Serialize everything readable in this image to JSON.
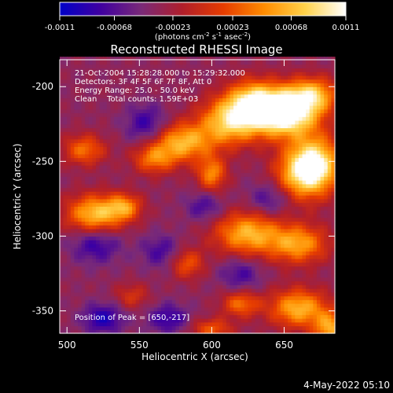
{
  "colorbar": {
    "ticks": [
      "-0.0011",
      "-0.00068",
      "-0.00023",
      "0.00023",
      "0.00068",
      "0.0011"
    ],
    "tick_values": [
      -0.0011,
      -0.00068,
      -0.00023,
      0.00023,
      0.00068,
      0.0011
    ],
    "range": [
      -0.0011,
      0.0011
    ],
    "units_prefix": "(photons cm",
    "units_exp1": "-2",
    "units_mid": " s",
    "units_exp2": "-1",
    "units_mid2": " asec",
    "units_exp3": "-2",
    "units_suffix": ")",
    "stops": [
      "#0000c8",
      "#4000a0",
      "#7a2a78",
      "#b01e2a",
      "#e63c00",
      "#ff8c00",
      "#ffd24a",
      "#ffffff"
    ]
  },
  "chart_data": {
    "type": "heatmap",
    "title": "Reconstructed RHESSI Image",
    "xlabel": "Heliocentric X (arcsec)",
    "ylabel": "Heliocentric Y (arcsec)",
    "xlim": [
      495,
      685
    ],
    "ylim": [
      -365,
      -182
    ],
    "xticks": [
      500,
      550,
      600,
      650
    ],
    "yticks": [
      -200,
      -250,
      -300,
      -350
    ],
    "xtick_labels": [
      "500",
      "550",
      "600",
      "650"
    ],
    "ytick_labels": [
      "-200",
      "-250",
      "-300",
      "-350"
    ],
    "background_level": -0.00035,
    "sources": [
      {
        "x": 650,
        "y": -217,
        "amp": 0.0018,
        "sx": 16,
        "sy": 11
      },
      {
        "x": 670,
        "y": -205,
        "amp": 0.0009,
        "sx": 12,
        "sy": 8
      },
      {
        "x": 628,
        "y": -210,
        "amp": 0.001,
        "sx": 12,
        "sy": 10
      },
      {
        "x": 612,
        "y": -223,
        "amp": 0.0011,
        "sx": 14,
        "sy": 11
      },
      {
        "x": 580,
        "y": -237,
        "amp": 0.001,
        "sx": 14,
        "sy": 9
      },
      {
        "x": 560,
        "y": -248,
        "amp": 0.0007,
        "sx": 10,
        "sy": 7
      },
      {
        "x": 512,
        "y": -242,
        "amp": 0.0007,
        "sx": 10,
        "sy": 7
      },
      {
        "x": 600,
        "y": -258,
        "amp": 0.0008,
        "sx": 7,
        "sy": 8
      },
      {
        "x": 660,
        "y": -258,
        "amp": 0.0008,
        "sx": 12,
        "sy": 12
      },
      {
        "x": 672,
        "y": -252,
        "amp": 0.0013,
        "sx": 12,
        "sy": 13
      },
      {
        "x": 520,
        "y": -285,
        "amp": 0.0011,
        "sx": 14,
        "sy": 9
      },
      {
        "x": 540,
        "y": -280,
        "amp": 0.0007,
        "sx": 8,
        "sy": 6
      },
      {
        "x": 625,
        "y": -298,
        "amp": 0.001,
        "sx": 16,
        "sy": 10
      },
      {
        "x": 660,
        "y": -305,
        "amp": 0.0009,
        "sx": 14,
        "sy": 9
      },
      {
        "x": 583,
        "y": -318,
        "amp": 0.0006,
        "sx": 8,
        "sy": 7
      },
      {
        "x": 545,
        "y": -340,
        "amp": 0.0004,
        "sx": 8,
        "sy": 6
      },
      {
        "x": 620,
        "y": -345,
        "amp": 0.0007,
        "sx": 9,
        "sy": 6
      },
      {
        "x": 660,
        "y": -348,
        "amp": 0.001,
        "sx": 14,
        "sy": 9
      },
      {
        "x": 682,
        "y": -362,
        "amp": 0.0009,
        "sx": 8,
        "sy": 8
      },
      {
        "x": 600,
        "y": -362,
        "amp": 0.0006,
        "sx": 10,
        "sy": 5
      },
      {
        "x": 555,
        "y": -225,
        "amp": -0.0005,
        "sx": 10,
        "sy": 9
      },
      {
        "x": 520,
        "y": -305,
        "amp": -0.0005,
        "sx": 12,
        "sy": 9
      },
      {
        "x": 565,
        "y": -310,
        "amp": -0.0004,
        "sx": 10,
        "sy": 8
      },
      {
        "x": 525,
        "y": -355,
        "amp": -0.0006,
        "sx": 10,
        "sy": 7
      },
      {
        "x": 570,
        "y": -355,
        "amp": -0.0005,
        "sx": 10,
        "sy": 7
      },
      {
        "x": 620,
        "y": -325,
        "amp": -0.0004,
        "sx": 10,
        "sy": 8
      },
      {
        "x": 640,
        "y": -275,
        "amp": -0.0004,
        "sx": 10,
        "sy": 8
      },
      {
        "x": 595,
        "y": -280,
        "amp": -0.0004,
        "sx": 9,
        "sy": 7
      }
    ]
  },
  "annotations": {
    "line1": "21-Oct-2004 15:28:28.000 to 15:29:32.000",
    "line2": "Detectors: 3F 4F 5F 6F 7F 8F, Att 0",
    "line3": "Energy Range: 25.0 - 50.0 keV",
    "line4": "Clean    Total counts: 1.59E+03",
    "peak": "Position of Peak = [650,-217]"
  },
  "footer": {
    "timestamp": "4-May-2022 05:10"
  }
}
